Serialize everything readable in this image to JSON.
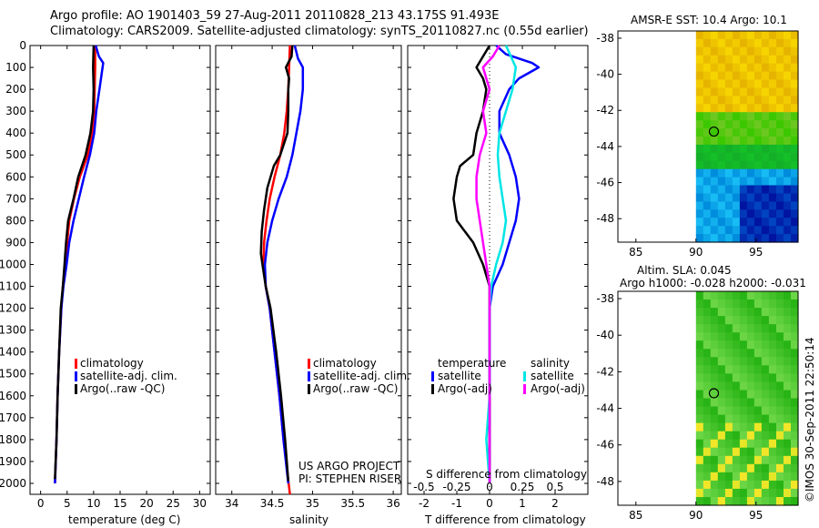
{
  "header": {
    "line1": "Argo profile: AO 1901403_59 27-Aug-2011 20110828_213 43.175S 91.493E",
    "line2": "Climatology: CARS2009. Satellite-adjusted climatology: synTS_20110827.nc (0.55d earlier)"
  },
  "colors": {
    "clim": "#ff0000",
    "sat": "#0000ff",
    "argo": "#000000",
    "sat_s": "#00e5e5",
    "argo_s": "#ff00ff"
  },
  "chart_data": [
    {
      "type": "line",
      "id": "temperature",
      "xlabel": "temperature (deg C)",
      "xlim": [
        -2,
        32
      ],
      "ylim": [
        0,
        2050
      ],
      "xticks": [
        0,
        5,
        10,
        15,
        20,
        25,
        30
      ],
      "yticks": [
        0,
        100,
        200,
        300,
        400,
        500,
        600,
        700,
        800,
        900,
        1000,
        1100,
        1200,
        1300,
        1400,
        1500,
        1600,
        1700,
        1800,
        1900,
        2000
      ],
      "legend": [
        "climatology",
        "satellite-adj. clim.",
        "Argo(..raw -QC)"
      ],
      "series": [
        {
          "name": "climatology",
          "color": "clim",
          "points": [
            [
              10.3,
              0
            ],
            [
              10.3,
              100
            ],
            [
              10.1,
              300
            ],
            [
              9.8,
              400
            ],
            [
              8.9,
              500
            ],
            [
              7.4,
              600
            ],
            [
              6.3,
              700
            ],
            [
              5.4,
              800
            ],
            [
              5.0,
              900
            ],
            [
              4.6,
              1000
            ],
            [
              4.2,
              1100
            ],
            [
              3.9,
              1200
            ],
            [
              3.5,
              1400
            ],
            [
              3.2,
              1600
            ],
            [
              3.0,
              1800
            ],
            [
              2.7,
              2000
            ]
          ]
        },
        {
          "name": "satellite-adj. clim.",
          "color": "sat",
          "points": [
            [
              10.4,
              0
            ],
            [
              11.0,
              50
            ],
            [
              11.8,
              80
            ],
            [
              11.1,
              200
            ],
            [
              10.5,
              300
            ],
            [
              10.1,
              400
            ],
            [
              9.3,
              500
            ],
            [
              8.2,
              600
            ],
            [
              7.2,
              700
            ],
            [
              6.2,
              800
            ],
            [
              5.4,
              900
            ],
            [
              4.9,
              1000
            ],
            [
              4.3,
              1100
            ],
            [
              3.9,
              1200
            ],
            [
              3.5,
              1400
            ],
            [
              3.2,
              1600
            ],
            [
              3.0,
              1800
            ],
            [
              2.7,
              2000
            ]
          ]
        },
        {
          "name": "Argo(..raw -QC)",
          "color": "argo",
          "points": [
            [
              10.0,
              0
            ],
            [
              9.9,
              100
            ],
            [
              10.0,
              200
            ],
            [
              9.9,
              300
            ],
            [
              9.4,
              400
            ],
            [
              8.5,
              500
            ],
            [
              7.1,
              600
            ],
            [
              6.2,
              700
            ],
            [
              5.2,
              800
            ],
            [
              4.8,
              900
            ],
            [
              4.5,
              1000
            ],
            [
              4.2,
              1100
            ],
            [
              3.8,
              1200
            ],
            [
              3.5,
              1400
            ],
            [
              3.2,
              1600
            ],
            [
              3.0,
              1800
            ],
            [
              2.7,
              1980
            ]
          ]
        }
      ]
    },
    {
      "type": "line",
      "id": "salinity",
      "xlabel": "salinity",
      "xlim": [
        33.8,
        36.1
      ],
      "ylim": [
        0,
        2050
      ],
      "xticks": [
        34,
        34.5,
        35,
        35.5,
        36
      ],
      "legend": [
        "climatology",
        "satellite-adj. clim.",
        "Argo(..raw -QC)"
      ],
      "credit1": "US ARGO PROJECT",
      "credit2": "PI: STEPHEN RISER",
      "series": [
        {
          "name": "climatology",
          "color": "clim",
          "points": [
            [
              34.72,
              0
            ],
            [
              34.71,
              100
            ],
            [
              34.7,
              200
            ],
            [
              34.68,
              300
            ],
            [
              34.65,
              400
            ],
            [
              34.6,
              500
            ],
            [
              34.53,
              600
            ],
            [
              34.47,
              700
            ],
            [
              34.43,
              800
            ],
            [
              34.4,
              900
            ],
            [
              34.39,
              1000
            ],
            [
              34.42,
              1100
            ],
            [
              34.47,
              1200
            ],
            [
              34.53,
              1400
            ],
            [
              34.59,
              1600
            ],
            [
              34.64,
              1800
            ],
            [
              34.72,
              2050
            ]
          ]
        },
        {
          "name": "satellite-adj. clim.",
          "color": "sat",
          "points": [
            [
              34.78,
              0
            ],
            [
              34.82,
              60
            ],
            [
              34.88,
              100
            ],
            [
              34.88,
              200
            ],
            [
              34.85,
              300
            ],
            [
              34.8,
              400
            ],
            [
              34.75,
              500
            ],
            [
              34.68,
              600
            ],
            [
              34.58,
              700
            ],
            [
              34.5,
              800
            ],
            [
              34.44,
              900
            ],
            [
              34.41,
              1000
            ],
            [
              34.42,
              1100
            ],
            [
              34.47,
              1200
            ],
            [
              34.53,
              1400
            ],
            [
              34.59,
              1600
            ],
            [
              34.64,
              1800
            ],
            [
              34.7,
              2000
            ]
          ]
        },
        {
          "name": "Argo(..raw -QC)",
          "color": "argo",
          "points": [
            [
              34.75,
              0
            ],
            [
              34.74,
              50
            ],
            [
              34.67,
              100
            ],
            [
              34.71,
              150
            ],
            [
              34.7,
              200
            ],
            [
              34.7,
              300
            ],
            [
              34.69,
              400
            ],
            [
              34.6,
              500
            ],
            [
              34.52,
              550
            ],
            [
              34.44,
              650
            ],
            [
              34.4,
              750
            ],
            [
              34.37,
              850
            ],
            [
              34.36,
              950
            ],
            [
              34.38,
              1000
            ],
            [
              34.42,
              1100
            ],
            [
              34.48,
              1200
            ],
            [
              34.55,
              1400
            ],
            [
              34.61,
              1600
            ],
            [
              34.66,
              1800
            ],
            [
              34.7,
              1990
            ]
          ]
        }
      ]
    },
    {
      "type": "line",
      "id": "difference",
      "xlabel_top": "S difference from climatology",
      "xlabel": "T difference from climatology",
      "xlim": [
        -2.5,
        3.0
      ],
      "ylim": [
        0,
        2050
      ],
      "xticks": [
        -2,
        -1,
        0,
        1,
        2
      ],
      "s_ticks": [
        {
          "label": "-0.5",
          "at": -2
        },
        {
          "label": "-0.25",
          "at": -1
        },
        {
          "label": "0",
          "at": 0
        },
        {
          "label": "0.25",
          "at": 1
        },
        {
          "label": "0.5",
          "at": 2
        }
      ],
      "legend_temp_title": "temperature",
      "legend_sal_title": "salinity",
      "legend": [
        "satellite",
        "Argo(-adj)",
        "satellite",
        "Argo(-adj)"
      ],
      "series": [
        {
          "name": "temperature satellite",
          "color": "sat",
          "points": [
            [
              0.2,
              0
            ],
            [
              0.5,
              40
            ],
            [
              1.3,
              80
            ],
            [
              1.5,
              100
            ],
            [
              0.9,
              150
            ],
            [
              0.6,
              200
            ],
            [
              0.3,
              300
            ],
            [
              0.3,
              400
            ],
            [
              0.6,
              500
            ],
            [
              0.8,
              600
            ],
            [
              0.9,
              700
            ],
            [
              0.8,
              800
            ],
            [
              0.6,
              900
            ],
            [
              0.4,
              1000
            ],
            [
              0.1,
              1100
            ],
            [
              0,
              1200
            ],
            [
              0,
              1400
            ],
            [
              0,
              1800
            ],
            [
              0,
              2000
            ]
          ]
        },
        {
          "name": "temperature Argo(-adj)",
          "color": "argo",
          "points": [
            [
              0,
              0
            ],
            [
              -0.2,
              50
            ],
            [
              -0.4,
              100
            ],
            [
              -0.2,
              150
            ],
            [
              -0.1,
              200
            ],
            [
              -0.2,
              300
            ],
            [
              -0.4,
              400
            ],
            [
              -0.5,
              500
            ],
            [
              -0.9,
              550
            ],
            [
              -1.0,
              600
            ],
            [
              -1.1,
              700
            ],
            [
              -1.0,
              800
            ],
            [
              -0.5,
              900
            ],
            [
              -0.2,
              1000
            ],
            [
              0,
              1100
            ],
            [
              0,
              1200
            ],
            [
              0,
              1400
            ],
            [
              0,
              1800
            ],
            [
              0,
              2000
            ]
          ]
        },
        {
          "name": "salinity satellite",
          "color": "sat_s",
          "points": [
            [
              0.5,
              0
            ],
            [
              0.8,
              100
            ],
            [
              0.7,
              200
            ],
            [
              0.5,
              300
            ],
            [
              0.3,
              400
            ],
            [
              0.25,
              500
            ],
            [
              0.3,
              600
            ],
            [
              0.4,
              700
            ],
            [
              0.5,
              800
            ],
            [
              0.4,
              900
            ],
            [
              0.2,
              1000
            ],
            [
              0.05,
              1100
            ],
            [
              0,
              1200
            ],
            [
              0,
              1600
            ],
            [
              -0.1,
              1800
            ],
            [
              0,
              2000
            ]
          ]
        },
        {
          "name": "salinity Argo(-adj)",
          "color": "argo_s",
          "points": [
            [
              0.3,
              0
            ],
            [
              0.1,
              50
            ],
            [
              -0.2,
              100
            ],
            [
              0,
              200
            ],
            [
              -0.2,
              300
            ],
            [
              -0.1,
              400
            ],
            [
              -0.3,
              500
            ],
            [
              -0.4,
              600
            ],
            [
              -0.4,
              700
            ],
            [
              -0.3,
              800
            ],
            [
              -0.2,
              900
            ],
            [
              -0.1,
              1000
            ],
            [
              0,
              1100
            ],
            [
              0,
              1400
            ],
            [
              0,
              1800
            ],
            [
              0,
              2000
            ]
          ]
        }
      ]
    },
    {
      "type": "heatmap",
      "id": "sst_map",
      "title": "AMSR-E SST: 10.4  Argo: 10.1",
      "xlim": [
        83.5,
        98.5
      ],
      "ylim": [
        -49.3,
        -37.6
      ],
      "xticks": [
        85,
        90,
        95
      ],
      "yticks": [
        -38,
        -40,
        -42,
        -44,
        -46,
        -48
      ],
      "float_lon": 91.493,
      "float_lat": -43.175
    },
    {
      "type": "heatmap",
      "id": "sla_map",
      "title1": "Altim. SLA: 0.045",
      "title2": "Argo h1000: -0.028  h2000: -0.031",
      "xlim": [
        83.5,
        98.5
      ],
      "ylim": [
        -49.3,
        -37.6
      ],
      "xticks": [
        85,
        90,
        95
      ],
      "yticks": [
        -38,
        -40,
        -42,
        -44,
        -46,
        -48
      ],
      "float_lon": 91.493,
      "float_lat": -43.175
    }
  ],
  "footer": {
    "stamp": "©IMOS 30-Sep-2011 22:50:14"
  }
}
